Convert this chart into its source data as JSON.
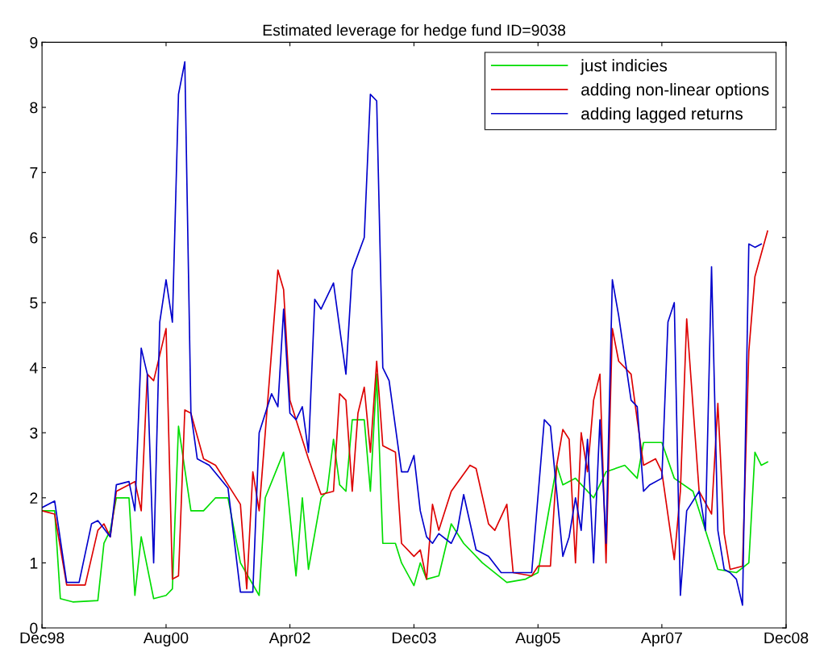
{
  "chart_data": {
    "type": "line",
    "title": "Estimated leverage for hedge fund ID=9038",
    "legend": "top right",
    "grid": false,
    "line_style": "solid",
    "marker": "none",
    "xlim": [
      "1998-12",
      "2008-12"
    ],
    "xticks": [
      {
        "value": "1998-12",
        "label": "Dec98"
      },
      {
        "value": "2000-08",
        "label": "Aug00"
      },
      {
        "value": "2002-04",
        "label": "Apr02"
      },
      {
        "value": "2003-12",
        "label": "Dec03"
      },
      {
        "value": "2005-08",
        "label": "Aug05"
      },
      {
        "value": "2007-04",
        "label": "Apr07"
      },
      {
        "value": "2008-12",
        "label": "Dec08"
      }
    ],
    "ylim": [
      0,
      9
    ],
    "yticks": [
      0,
      1,
      2,
      3,
      4,
      5,
      6,
      7,
      8,
      9
    ],
    "series": [
      {
        "name": "just indicies",
        "color": "#00dd00",
        "x": [
          "1998-12",
          "1999-02",
          "1999-03",
          "1999-05",
          "1999-09",
          "1999-10",
          "1999-11",
          "1999-12",
          "2000-02",
          "2000-03",
          "2000-04",
          "2000-06",
          "2000-08",
          "2000-09",
          "2000-10",
          "2000-12",
          "2001-02",
          "2001-04",
          "2001-06",
          "2001-08",
          "2001-11",
          "2001-12",
          "2002-03",
          "2002-05",
          "2002-06",
          "2002-07",
          "2002-09",
          "2002-10",
          "2002-11",
          "2002-12",
          "2003-01",
          "2003-02",
          "2003-04",
          "2003-05",
          "2003-06",
          "2003-07",
          "2003-09",
          "2003-10",
          "2003-12",
          "2004-01",
          "2004-02",
          "2004-04",
          "2004-06",
          "2004-08",
          "2004-11",
          "2005-03",
          "2005-06",
          "2005-07",
          "2005-08",
          "2005-11",
          "2005-12",
          "2006-02",
          "2006-05",
          "2006-07",
          "2006-10",
          "2006-12",
          "2007-01",
          "2007-04",
          "2007-06",
          "2007-09",
          "2008-01",
          "2008-04",
          "2008-06",
          "2008-07",
          "2008-08",
          "2008-09"
        ],
        "values": [
          1.8,
          1.8,
          0.45,
          0.4,
          0.42,
          1.3,
          1.5,
          2.0,
          2.0,
          0.5,
          1.4,
          0.45,
          0.5,
          0.6,
          3.1,
          1.8,
          1.8,
          2.0,
          2.0,
          1.0,
          0.5,
          2.0,
          2.7,
          0.8,
          2.0,
          0.9,
          2.0,
          2.1,
          2.9,
          2.2,
          2.1,
          3.2,
          3.2,
          2.1,
          3.9,
          1.3,
          1.3,
          1.0,
          0.65,
          1.0,
          0.75,
          0.8,
          1.6,
          1.3,
          1.0,
          0.7,
          0.75,
          0.8,
          0.85,
          2.5,
          2.2,
          2.3,
          2.0,
          2.4,
          2.5,
          2.3,
          2.85,
          2.85,
          2.3,
          2.1,
          0.9,
          0.85,
          1.0,
          2.7,
          2.5,
          2.55
        ]
      },
      {
        "name": "adding non-linear options",
        "color": "#dd0000",
        "x": [
          "1998-12",
          "1999-02",
          "1999-04",
          "1999-07",
          "1999-09",
          "1999-10",
          "1999-11",
          "1999-12",
          "2000-03",
          "2000-04",
          "2000-05",
          "2000-06",
          "2000-08",
          "2000-09",
          "2000-10",
          "2000-11",
          "2000-12",
          "2001-02",
          "2001-04",
          "2001-06",
          "2001-08",
          "2001-09",
          "2001-10",
          "2001-11",
          "2001-12",
          "2002-02",
          "2002-03",
          "2002-04",
          "2002-05",
          "2002-07",
          "2002-09",
          "2002-11",
          "2002-12",
          "2003-01",
          "2003-02",
          "2003-03",
          "2003-04",
          "2003-05",
          "2003-06",
          "2003-07",
          "2003-09",
          "2003-10",
          "2003-12",
          "2004-01",
          "2004-02",
          "2004-03",
          "2004-04",
          "2004-06",
          "2004-09",
          "2004-10",
          "2004-12",
          "2005-01",
          "2005-03",
          "2005-04",
          "2005-07",
          "2005-08",
          "2005-10",
          "2005-11",
          "2005-12",
          "2006-01",
          "2006-02",
          "2006-03",
          "2006-04",
          "2006-05",
          "2006-06",
          "2006-07",
          "2006-08",
          "2006-09",
          "2006-11",
          "2006-12",
          "2007-01",
          "2007-03",
          "2007-04",
          "2007-06",
          "2007-07",
          "2007-08",
          "2007-10",
          "2007-12",
          "2008-01",
          "2008-02",
          "2008-03",
          "2008-05",
          "2008-06",
          "2008-07",
          "2008-09"
        ],
        "values": [
          1.8,
          1.75,
          0.66,
          0.66,
          1.5,
          1.6,
          1.4,
          2.1,
          2.25,
          1.8,
          3.9,
          3.8,
          4.6,
          0.75,
          0.8,
          3.35,
          3.3,
          2.6,
          2.5,
          2.2,
          1.9,
          0.6,
          2.4,
          1.8,
          3.0,
          5.5,
          5.2,
          3.5,
          3.2,
          2.6,
          2.05,
          2.1,
          3.6,
          3.5,
          2.1,
          3.3,
          3.7,
          2.7,
          4.1,
          2.8,
          2.7,
          1.3,
          1.1,
          1.2,
          0.75,
          1.9,
          1.5,
          2.1,
          2.5,
          2.45,
          1.6,
          1.5,
          1.9,
          0.85,
          0.8,
          0.95,
          0.95,
          2.5,
          3.05,
          2.9,
          1.0,
          3.0,
          2.4,
          3.5,
          3.9,
          1.0,
          4.6,
          4.1,
          3.9,
          3.2,
          2.5,
          2.6,
          2.4,
          1.05,
          2.1,
          4.75,
          2.1,
          1.75,
          3.45,
          1.45,
          0.9,
          0.95,
          4.25,
          5.4,
          6.1
        ]
      },
      {
        "name": "adding lagged returns",
        "color": "#0000cc",
        "x": [
          "1998-12",
          "1999-02",
          "1999-04",
          "1999-06",
          "1999-08",
          "1999-09",
          "1999-11",
          "1999-12",
          "2000-02",
          "2000-03",
          "2000-04",
          "2000-05",
          "2000-06",
          "2000-07",
          "2000-08",
          "2000-09",
          "2000-10",
          "2000-11",
          "2000-12",
          "2001-01",
          "2001-03",
          "2001-06",
          "2001-08",
          "2001-10",
          "2001-11",
          "2002-01",
          "2002-02",
          "2002-03",
          "2002-04",
          "2002-05",
          "2002-06",
          "2002-07",
          "2002-08",
          "2002-09",
          "2002-11",
          "2003-01",
          "2003-02",
          "2003-04",
          "2003-05",
          "2003-06",
          "2003-07",
          "2003-08",
          "2003-10",
          "2003-11",
          "2003-12",
          "2004-01",
          "2004-02",
          "2004-03",
          "2004-04",
          "2004-06",
          "2004-07",
          "2004-08",
          "2004-10",
          "2004-12",
          "2005-02",
          "2005-04",
          "2005-07",
          "2005-09",
          "2005-10",
          "2005-12",
          "2006-01",
          "2006-02",
          "2006-03",
          "2006-04",
          "2006-05",
          "2006-06",
          "2006-07",
          "2006-08",
          "2006-09",
          "2006-11",
          "2006-12",
          "2007-01",
          "2007-02",
          "2007-04",
          "2007-05",
          "2007-06",
          "2007-07",
          "2007-08",
          "2007-10",
          "2007-11",
          "2007-12",
          "2008-01",
          "2008-02",
          "2008-03",
          "2008-04",
          "2008-05",
          "2008-06",
          "2008-07",
          "2008-08"
        ],
        "values": [
          1.85,
          1.95,
          0.7,
          0.7,
          1.6,
          1.65,
          1.4,
          2.2,
          2.25,
          1.8,
          4.3,
          3.9,
          1.0,
          4.7,
          5.35,
          4.7,
          8.2,
          8.7,
          3.3,
          2.6,
          2.5,
          2.15,
          0.55,
          0.55,
          3.0,
          3.6,
          3.4,
          4.9,
          3.3,
          3.2,
          3.4,
          2.7,
          5.05,
          4.9,
          5.3,
          3.9,
          5.5,
          6.0,
          8.2,
          8.1,
          4.0,
          3.8,
          2.4,
          2.4,
          2.65,
          1.8,
          1.4,
          1.3,
          1.45,
          1.3,
          1.5,
          2.05,
          1.2,
          1.1,
          0.85,
          0.85,
          0.85,
          3.2,
          3.1,
          1.1,
          1.4,
          2.0,
          1.5,
          2.9,
          1.0,
          3.2,
          1.3,
          5.35,
          4.8,
          3.5,
          3.4,
          2.1,
          2.2,
          2.3,
          4.7,
          5.0,
          0.5,
          1.8,
          2.1,
          1.5,
          5.55,
          1.5,
          0.9,
          0.85,
          0.75,
          0.35,
          5.9,
          5.85,
          5.9
        ]
      }
    ]
  }
}
